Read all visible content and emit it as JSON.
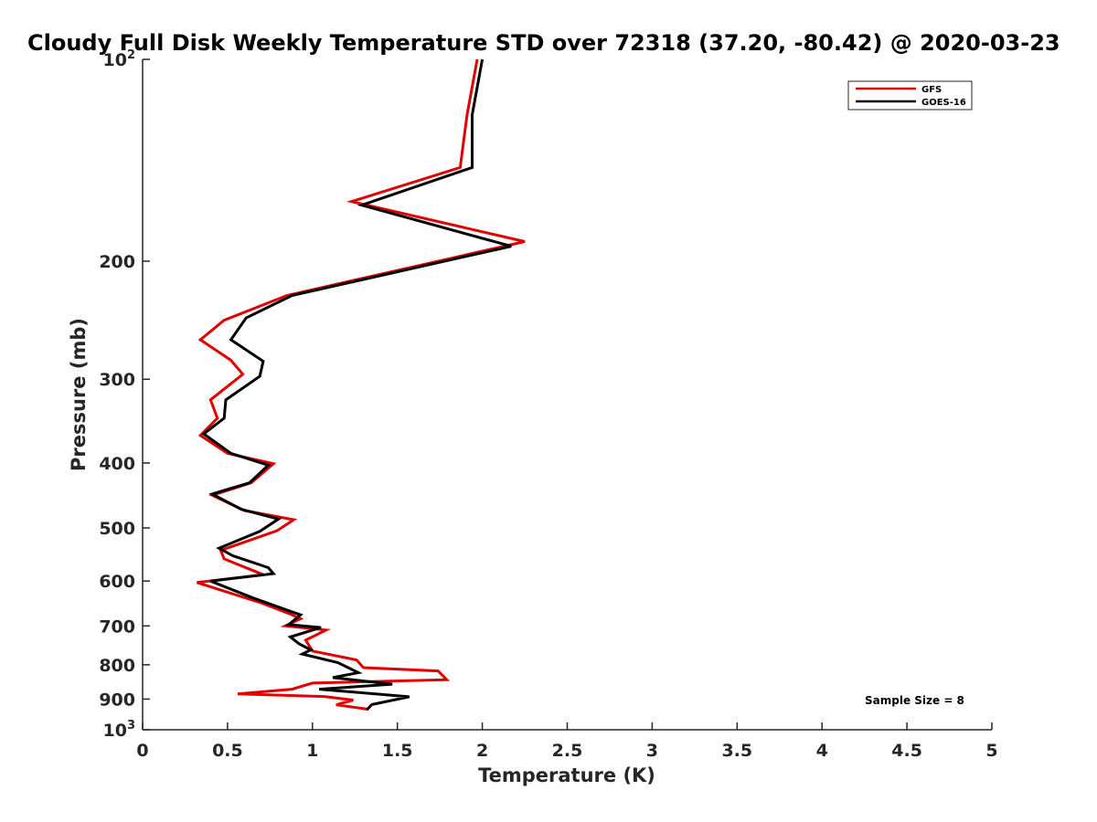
{
  "chart_data": {
    "type": "line",
    "title": "Cloudy Full Disk Weekly Temperature STD over 72318 (37.20, -80.42) @ 2020-03-23",
    "xlabel": "Temperature (K)",
    "ylabel": "Pressure (mb)",
    "xlim": [
      0,
      5
    ],
    "ylim": [
      100,
      1000
    ],
    "yscale": "log",
    "y_reversed": true,
    "xticks": [
      0,
      0.5,
      1,
      1.5,
      2,
      2.5,
      3,
      3.5,
      4,
      4.5,
      5
    ],
    "xtick_labels": [
      "0",
      "0.5",
      "1",
      "1.5",
      "2",
      "2.5",
      "3",
      "3.5",
      "4",
      "4.5",
      "5"
    ],
    "yticks": [
      {
        "value": 100,
        "label": "10",
        "sup": "2"
      },
      {
        "value": 200,
        "label": "200",
        "sup": ""
      },
      {
        "value": 300,
        "label": "300",
        "sup": ""
      },
      {
        "value": 400,
        "label": "400",
        "sup": ""
      },
      {
        "value": 500,
        "label": "500",
        "sup": ""
      },
      {
        "value": 600,
        "label": "600",
        "sup": ""
      },
      {
        "value": 700,
        "label": "700",
        "sup": ""
      },
      {
        "value": 800,
        "label": "800",
        "sup": ""
      },
      {
        "value": 900,
        "label": "900",
        "sup": ""
      },
      {
        "value": 1000,
        "label": "10",
        "sup": "3"
      }
    ],
    "legend_position": "top-right",
    "grid": false,
    "series": [
      {
        "name": "GFS",
        "color": "#e00000",
        "points": [
          [
            1.97,
            100
          ],
          [
            1.91,
            121
          ],
          [
            1.87,
            145
          ],
          [
            1.23,
            163
          ],
          [
            2.25,
            187
          ],
          [
            0.85,
            225
          ],
          [
            0.48,
            245
          ],
          [
            0.34,
            262
          ],
          [
            0.52,
            281
          ],
          [
            0.59,
            295
          ],
          [
            0.4,
            322
          ],
          [
            0.44,
            343
          ],
          [
            0.34,
            364
          ],
          [
            0.5,
            387
          ],
          [
            0.77,
            401
          ],
          [
            0.64,
            428
          ],
          [
            0.41,
            447
          ],
          [
            0.6,
            471
          ],
          [
            0.89,
            486
          ],
          [
            0.79,
            505
          ],
          [
            0.46,
            540
          ],
          [
            0.48,
            556
          ],
          [
            0.71,
            587
          ],
          [
            0.32,
            603
          ],
          [
            0.7,
            647
          ],
          [
            0.87,
            672
          ],
          [
            0.93,
            683
          ],
          [
            0.84,
            700
          ],
          [
            1.08,
            710
          ],
          [
            0.96,
            735
          ],
          [
            1.0,
            763
          ],
          [
            1.26,
            787
          ],
          [
            1.3,
            808
          ],
          [
            1.74,
            817
          ],
          [
            1.79,
            842
          ],
          [
            1.0,
            852
          ],
          [
            0.88,
            870
          ],
          [
            0.56,
            884
          ],
          [
            1.07,
            892
          ],
          [
            1.24,
            903
          ],
          [
            1.14,
            918
          ],
          [
            1.33,
            932
          ]
        ]
      },
      {
        "name": "GOES-16",
        "color": "#000000",
        "points": [
          [
            2.0,
            100
          ],
          [
            1.94,
            121
          ],
          [
            1.94,
            145
          ],
          [
            1.29,
            165
          ],
          [
            2.17,
            190
          ],
          [
            0.88,
            225
          ],
          [
            0.61,
            243
          ],
          [
            0.52,
            262
          ],
          [
            0.71,
            282
          ],
          [
            0.69,
            297
          ],
          [
            0.49,
            322
          ],
          [
            0.48,
            343
          ],
          [
            0.36,
            362
          ],
          [
            0.52,
            387
          ],
          [
            0.74,
            403
          ],
          [
            0.63,
            428
          ],
          [
            0.41,
            445
          ],
          [
            0.58,
            469
          ],
          [
            0.8,
            485
          ],
          [
            0.69,
            506
          ],
          [
            0.45,
            536
          ],
          [
            0.53,
            550
          ],
          [
            0.74,
            573
          ],
          [
            0.77,
            585
          ],
          [
            0.4,
            600
          ],
          [
            0.65,
            636
          ],
          [
            0.88,
            667
          ],
          [
            0.93,
            674
          ],
          [
            0.86,
            697
          ],
          [
            1.05,
            704
          ],
          [
            0.87,
            727
          ],
          [
            0.92,
            744
          ],
          [
            0.99,
            760
          ],
          [
            0.94,
            771
          ],
          [
            1.15,
            794
          ],
          [
            1.27,
            822
          ],
          [
            1.12,
            836
          ],
          [
            1.47,
            855
          ],
          [
            1.04,
            870
          ],
          [
            1.57,
            893
          ],
          [
            1.35,
            917
          ],
          [
            1.32,
            934
          ]
        ]
      }
    ],
    "annotations": [
      {
        "text": "Sample Size = 8"
      }
    ]
  }
}
